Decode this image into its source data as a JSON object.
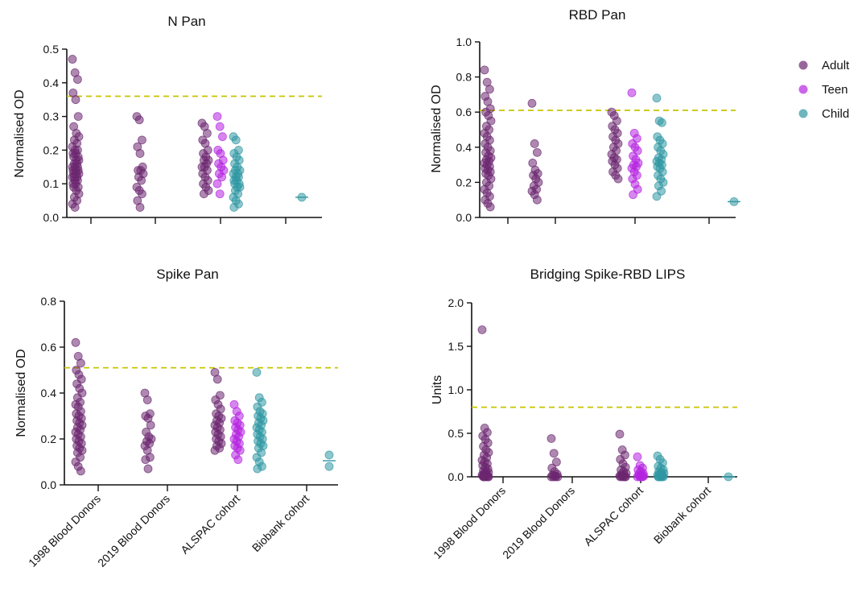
{
  "colors": {
    "Adult": "#6b2770",
    "Teen": "#b523e0",
    "Child": "#2f97a3",
    "cutoff": "#c8c400"
  },
  "legend": [
    {
      "name": "Adult",
      "color": "#6b2770"
    },
    {
      "name": "Teen",
      "color": "#b523e0"
    },
    {
      "name": "Child",
      "color": "#2f97a3"
    }
  ],
  "categories": [
    "1998 Blood Donors",
    "2019 Blood Donors",
    "ALSPAC cohort",
    "Biobank cohort"
  ],
  "chart_data": [
    {
      "type": "scatter",
      "title": "N Pan",
      "ylabel": "Normalised OD",
      "ylim": [
        0,
        0.5
      ],
      "yticks": [
        "0.0",
        "0.1",
        "0.2",
        "0.3",
        "0.4",
        "0.5"
      ],
      "cutoff": 0.36,
      "series": [
        {
          "name": "Adult",
          "category": "1998 Blood Donors",
          "values": [
            0.47,
            0.43,
            0.41,
            0.37,
            0.35,
            0.3,
            0.27,
            0.25,
            0.24,
            0.23,
            0.22,
            0.21,
            0.2,
            0.2,
            0.19,
            0.19,
            0.18,
            0.18,
            0.17,
            0.17,
            0.16,
            0.16,
            0.15,
            0.15,
            0.15,
            0.14,
            0.14,
            0.14,
            0.13,
            0.13,
            0.13,
            0.12,
            0.12,
            0.12,
            0.11,
            0.11,
            0.1,
            0.1,
            0.09,
            0.09,
            0.08,
            0.07,
            0.06,
            0.05,
            0.04,
            0.03
          ]
        },
        {
          "name": "Adult",
          "category": "2019 Blood Donors",
          "values": [
            0.3,
            0.29,
            0.23,
            0.21,
            0.19,
            0.15,
            0.14,
            0.14,
            0.13,
            0.12,
            0.11,
            0.09,
            0.08,
            0.07,
            0.05,
            0.03
          ]
        },
        {
          "name": "Adult",
          "category": "ALSPAC cohort",
          "values": [
            0.28,
            0.27,
            0.25,
            0.23,
            0.22,
            0.2,
            0.19,
            0.18,
            0.17,
            0.17,
            0.16,
            0.15,
            0.15,
            0.14,
            0.13,
            0.12,
            0.11,
            0.1,
            0.09,
            0.08,
            0.07
          ]
        },
        {
          "name": "Teen",
          "category": "ALSPAC cohort",
          "values": [
            0.3,
            0.27,
            0.24,
            0.2,
            0.19,
            0.17,
            0.16,
            0.15,
            0.14,
            0.13,
            0.12,
            0.1,
            0.07
          ]
        },
        {
          "name": "Child",
          "category": "ALSPAC cohort",
          "values": [
            0.24,
            0.23,
            0.2,
            0.19,
            0.18,
            0.17,
            0.16,
            0.15,
            0.14,
            0.14,
            0.13,
            0.13,
            0.12,
            0.12,
            0.11,
            0.11,
            0.1,
            0.1,
            0.09,
            0.09,
            0.08,
            0.07,
            0.06,
            0.05,
            0.04,
            0.03
          ]
        },
        {
          "name": "Child",
          "category": "Biobank cohort",
          "values": [
            0.06
          ]
        }
      ]
    },
    {
      "type": "scatter",
      "title": "RBD Pan",
      "ylabel": "Normalised OD",
      "ylim": [
        0,
        1.0
      ],
      "yticks": [
        "0.0",
        "0.2",
        "0.4",
        "0.6",
        "0.8",
        "1.0"
      ],
      "cutoff": 0.61,
      "series": [
        {
          "name": "Adult",
          "category": "1998 Blood Donors",
          "values": [
            0.84,
            0.77,
            0.73,
            0.69,
            0.66,
            0.62,
            0.6,
            0.58,
            0.55,
            0.52,
            0.5,
            0.48,
            0.46,
            0.44,
            0.42,
            0.4,
            0.38,
            0.37,
            0.35,
            0.34,
            0.33,
            0.32,
            0.31,
            0.3,
            0.29,
            0.28,
            0.27,
            0.26,
            0.25,
            0.24,
            0.22,
            0.2,
            0.18,
            0.16,
            0.14,
            0.12,
            0.1,
            0.08,
            0.06
          ]
        },
        {
          "name": "Adult",
          "category": "2019 Blood Donors",
          "values": [
            0.65,
            0.42,
            0.37,
            0.31,
            0.27,
            0.25,
            0.24,
            0.22,
            0.2,
            0.18,
            0.16,
            0.15,
            0.13,
            0.1
          ]
        },
        {
          "name": "Adult",
          "category": "ALSPAC cohort",
          "values": [
            0.6,
            0.58,
            0.55,
            0.52,
            0.5,
            0.48,
            0.46,
            0.44,
            0.42,
            0.4,
            0.38,
            0.36,
            0.34,
            0.33,
            0.32,
            0.3,
            0.28,
            0.26,
            0.24,
            0.22
          ]
        },
        {
          "name": "Teen",
          "category": "ALSPAC cohort",
          "values": [
            0.71,
            0.48,
            0.45,
            0.42,
            0.4,
            0.38,
            0.35,
            0.33,
            0.31,
            0.3,
            0.29,
            0.28,
            0.26,
            0.24,
            0.22,
            0.19,
            0.16,
            0.13
          ]
        },
        {
          "name": "Child",
          "category": "ALSPAC cohort",
          "values": [
            0.68,
            0.55,
            0.54,
            0.46,
            0.44,
            0.42,
            0.4,
            0.38,
            0.36,
            0.34,
            0.33,
            0.32,
            0.31,
            0.3,
            0.29,
            0.28,
            0.26,
            0.24,
            0.22,
            0.2,
            0.18,
            0.15,
            0.12
          ]
        },
        {
          "name": "Child",
          "category": "Biobank cohort",
          "values": [
            0.09
          ]
        }
      ]
    },
    {
      "type": "scatter",
      "title": "Spike Pan",
      "ylabel": "Normalised OD",
      "ylim": [
        0,
        0.8
      ],
      "yticks": [
        "0.0",
        "0.2",
        "0.4",
        "0.6",
        "0.8"
      ],
      "cutoff": 0.51,
      "series": [
        {
          "name": "Adult",
          "category": "1998 Blood Donors",
          "values": [
            0.62,
            0.56,
            0.53,
            0.5,
            0.48,
            0.46,
            0.44,
            0.42,
            0.4,
            0.38,
            0.36,
            0.35,
            0.34,
            0.32,
            0.31,
            0.3,
            0.29,
            0.28,
            0.27,
            0.26,
            0.25,
            0.24,
            0.23,
            0.22,
            0.21,
            0.2,
            0.19,
            0.18,
            0.17,
            0.16,
            0.15,
            0.14,
            0.12,
            0.1,
            0.08,
            0.06
          ]
        },
        {
          "name": "Adult",
          "category": "2019 Blood Donors",
          "values": [
            0.4,
            0.37,
            0.31,
            0.3,
            0.29,
            0.26,
            0.23,
            0.21,
            0.2,
            0.19,
            0.18,
            0.17,
            0.15,
            0.12,
            0.11,
            0.07
          ]
        },
        {
          "name": "Adult",
          "category": "ALSPAC cohort",
          "values": [
            0.49,
            0.46,
            0.39,
            0.37,
            0.35,
            0.33,
            0.31,
            0.3,
            0.29,
            0.28,
            0.27,
            0.26,
            0.25,
            0.24,
            0.23,
            0.22,
            0.21,
            0.2,
            0.19,
            0.18,
            0.17,
            0.16,
            0.15
          ]
        },
        {
          "name": "Teen",
          "category": "ALSPAC cohort",
          "values": [
            0.35,
            0.32,
            0.3,
            0.28,
            0.27,
            0.26,
            0.25,
            0.24,
            0.23,
            0.22,
            0.21,
            0.2,
            0.19,
            0.18,
            0.17,
            0.16,
            0.15,
            0.13,
            0.11
          ]
        },
        {
          "name": "Child",
          "category": "ALSPAC cohort",
          "values": [
            0.49,
            0.38,
            0.36,
            0.34,
            0.32,
            0.31,
            0.3,
            0.29,
            0.28,
            0.27,
            0.26,
            0.25,
            0.24,
            0.23,
            0.22,
            0.21,
            0.2,
            0.19,
            0.18,
            0.17,
            0.16,
            0.14,
            0.12,
            0.1,
            0.08,
            0.07
          ]
        },
        {
          "name": "Child",
          "category": "Biobank cohort",
          "values": [
            0.13,
            0.08
          ]
        }
      ]
    },
    {
      "type": "scatter",
      "title": "Bridging Spike-RBD LIPS",
      "ylabel": "Units",
      "ylim": [
        0,
        2.0
      ],
      "yticks": [
        "0.0",
        "0.5",
        "1.0",
        "1.5",
        "2.0"
      ],
      "cutoff": 0.8,
      "series": [
        {
          "name": "Adult",
          "category": "1998 Blood Donors",
          "values": [
            1.69,
            0.56,
            0.51,
            0.47,
            0.43,
            0.39,
            0.35,
            0.31,
            0.28,
            0.25,
            0.22,
            0.19,
            0.17,
            0.15,
            0.13,
            0.11,
            0.09,
            0.07,
            0.06,
            0.05,
            0.04,
            0.03,
            0.02,
            0.02,
            0.01,
            0.01,
            0.01,
            0.0,
            0.0,
            0.0,
            0.0,
            0.0
          ]
        },
        {
          "name": "Adult",
          "category": "2019 Blood Donors",
          "values": [
            0.44,
            0.27,
            0.17,
            0.1,
            0.06,
            0.03,
            0.02,
            0.01,
            0.0,
            0.0,
            0.0,
            0.0
          ]
        },
        {
          "name": "Adult",
          "category": "ALSPAC cohort",
          "values": [
            0.49,
            0.31,
            0.25,
            0.2,
            0.15,
            0.11,
            0.08,
            0.06,
            0.04,
            0.03,
            0.02,
            0.01,
            0.01,
            0.0,
            0.0,
            0.0,
            0.0
          ]
        },
        {
          "name": "Teen",
          "category": "ALSPAC cohort",
          "values": [
            0.23,
            0.13,
            0.1,
            0.08,
            0.06,
            0.04,
            0.03,
            0.02,
            0.01,
            0.01,
            0.0,
            0.0,
            0.0,
            0.0
          ]
        },
        {
          "name": "Child",
          "category": "ALSPAC cohort",
          "values": [
            0.24,
            0.2,
            0.16,
            0.12,
            0.1,
            0.08,
            0.06,
            0.05,
            0.04,
            0.03,
            0.02,
            0.02,
            0.01,
            0.01,
            0.0,
            0.0,
            0.0,
            0.0,
            0.0
          ]
        },
        {
          "name": "Child",
          "category": "Biobank cohort",
          "values": [
            0.0
          ]
        }
      ]
    }
  ]
}
